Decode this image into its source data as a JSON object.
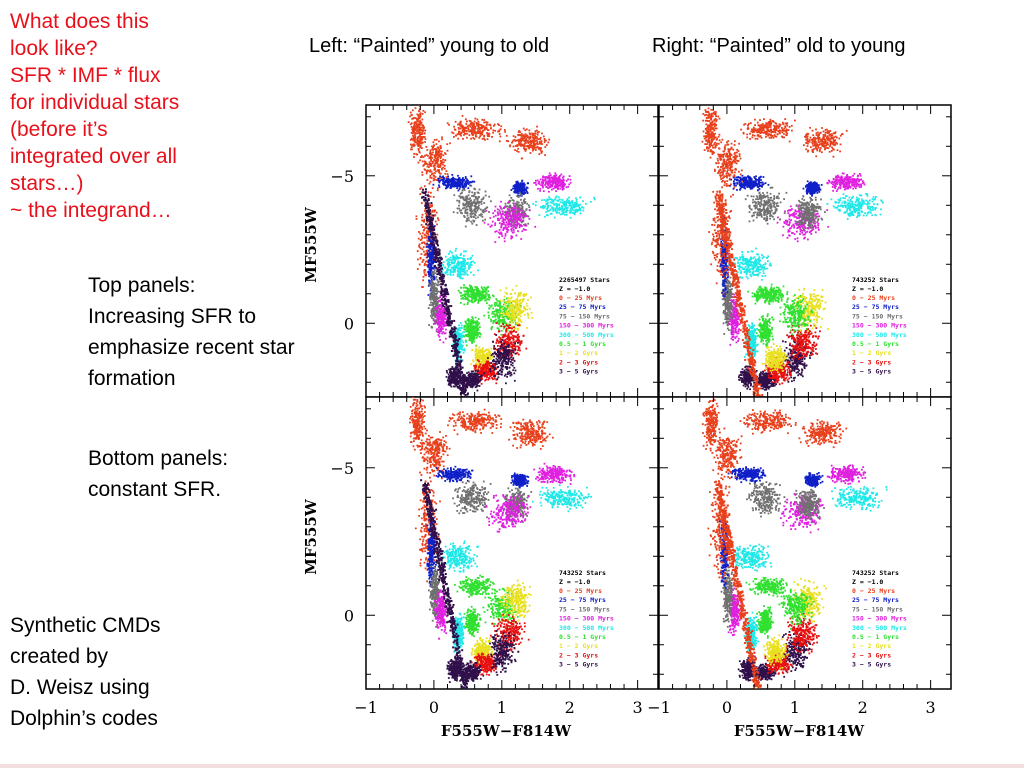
{
  "notes": {
    "red_lines": [
      "What does this",
      "look like?",
      "SFR * IMF * flux",
      "for individual stars",
      "(before it’s",
      "integrated over all",
      "stars…)",
      "~ the integrand…"
    ],
    "top_panels_lines": [
      "Top panels:",
      "Increasing SFR to",
      "emphasize recent star",
      "formation"
    ],
    "bottom_panels_lines": [
      "Bottom panels:",
      "constant SFR."
    ],
    "credits_lines": [
      "Synthetic CMDs",
      "created by",
      "D. Weisz using",
      "Dolphin’s codes"
    ]
  },
  "columns": {
    "left_title": "Left: “Painted” young to old",
    "right_title": "Right: “Painted” old to young"
  },
  "chart_data": {
    "type": "scatter",
    "xlabel": "F555W−F814W",
    "ylabel": "MF555W",
    "xlim": [
      -1,
      3.3
    ],
    "ylim": [
      2.5,
      -7.4
    ],
    "x_ticks": [
      "−1",
      "0",
      "1",
      "2",
      "3"
    ],
    "y_ticks": [
      "−5",
      "0"
    ],
    "x_tick_values": [
      -1,
      0,
      1,
      2,
      3
    ],
    "y_tick_values": [
      -5,
      0
    ],
    "age_bins": [
      {
        "label": "0 − 25 Myrs",
        "color": "#e8401c"
      },
      {
        "label": "25 − 75 Myrs",
        "color": "#1020c8"
      },
      {
        "label": "75 − 150 Myrs",
        "color": "#707070"
      },
      {
        "label": "150 − 300 Myrs",
        "color": "#e020e0"
      },
      {
        "label": "300 − 500 Myrs",
        "color": "#20e8e8"
      },
      {
        "label": "0.5 − 1 Gyrs",
        "color": "#30e030"
      },
      {
        "label": "1 − 2 Gyrs",
        "color": "#e8e020"
      },
      {
        "label": "2 − 3 Gyrs",
        "color": "#e81010"
      },
      {
        "label": "3 − 5 Gyrs",
        "color": "#30104a"
      }
    ],
    "panels": [
      {
        "position": "top-left",
        "stars": "2265497 Stars",
        "z": "Z = −1.0"
      },
      {
        "position": "top-right",
        "stars": "743252 Stars",
        "z": "Z = −1.0"
      },
      {
        "position": "bottom-left",
        "stars": "743252 Stars",
        "z": "Z = −1.0"
      },
      {
        "position": "bottom-right",
        "stars": "743252 Stars",
        "z": "Z = −1.0"
      }
    ]
  }
}
